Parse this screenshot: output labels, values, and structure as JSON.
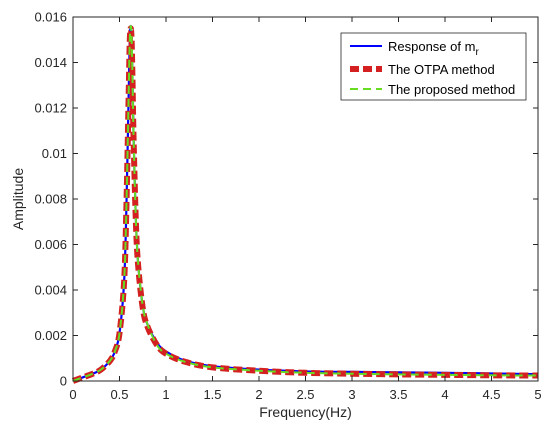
{
  "chart_data": {
    "type": "line",
    "xlabel": "Frequency(Hz)",
    "ylabel": "Amplitude",
    "xlim": [
      0,
      5
    ],
    "ylim": [
      0,
      0.016
    ],
    "x_ticks": [
      "0",
      "0.5",
      "1",
      "1.5",
      "2",
      "2.5",
      "3",
      "3.5",
      "4",
      "4.5",
      "5"
    ],
    "y_ticks": [
      "0",
      "0.002",
      "0.004",
      "0.006",
      "0.008",
      "0.01",
      "0.012",
      "0.014",
      "0.016"
    ],
    "grid": false,
    "legend_position": "top-right",
    "legend": {
      "series_1": {
        "base": "Response of m",
        "sub": "r"
      },
      "series_2": "The OTPA method",
      "series_3": "The proposed method"
    },
    "x": [
      0,
      0.1,
      0.2,
      0.3,
      0.4,
      0.45,
      0.5,
      0.55,
      0.575,
      0.6,
      0.61,
      0.62,
      0.63,
      0.64,
      0.65,
      0.675,
      0.7,
      0.75,
      0.8,
      0.9,
      1.0,
      1.2,
      1.5,
      2.0,
      2.5,
      3.0,
      3.5,
      4.0,
      4.5,
      5.0
    ],
    "series": [
      {
        "color": "#0000ff",
        "style": "solid",
        "values": [
          0,
          0.00015,
          0.0003,
          0.0005,
          0.0009,
          0.0013,
          0.0021,
          0.0044,
          0.0078,
          0.0129,
          0.0149,
          0.0156,
          0.0151,
          0.0133,
          0.011,
          0.0072,
          0.0052,
          0.0033,
          0.0025,
          0.0017,
          0.0013,
          0.0009,
          0.00065,
          0.0005,
          0.00042,
          0.0004,
          0.00038,
          0.00036,
          0.00033,
          0.0003
        ]
      },
      {
        "color": "#d42020",
        "style": "dashed-thick",
        "values": [
          0,
          0.00015,
          0.0003,
          0.0005,
          0.0009,
          0.0013,
          0.0021,
          0.0044,
          0.0078,
          0.0129,
          0.0149,
          0.0155,
          0.015,
          0.0132,
          0.0109,
          0.0071,
          0.0051,
          0.0032,
          0.0024,
          0.0016,
          0.0012,
          0.00085,
          0.0006,
          0.00045,
          0.00036,
          0.00032,
          0.00029,
          0.00027,
          0.00025,
          0.00024
        ]
      },
      {
        "color": "#66dd22",
        "style": "dashed",
        "values": [
          0,
          0.00015,
          0.0003,
          0.0005,
          0.0009,
          0.0013,
          0.0021,
          0.0044,
          0.0078,
          0.0129,
          0.0149,
          0.0156,
          0.0151,
          0.0133,
          0.011,
          0.0072,
          0.0052,
          0.0033,
          0.0025,
          0.0016,
          0.0012,
          0.00085,
          0.0006,
          0.00045,
          0.00036,
          0.00032,
          0.00029,
          0.00027,
          0.00025,
          0.00024
        ]
      }
    ]
  }
}
